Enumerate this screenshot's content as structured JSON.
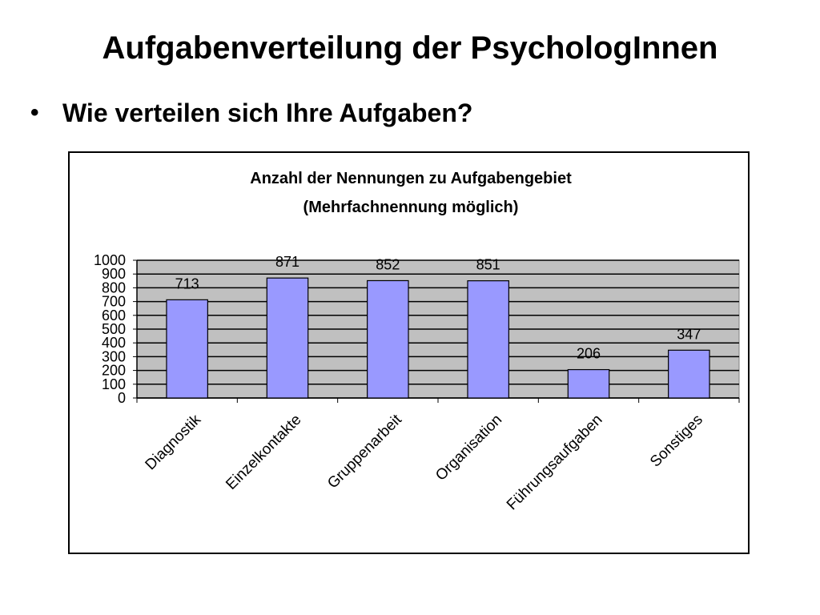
{
  "slide": {
    "title": "Aufgabenverteilung der PsychologInnen",
    "bullet_symbol": "•",
    "bullet": "Wie verteilen sich Ihre Aufgaben?"
  },
  "chart_data": {
    "type": "bar",
    "title": "Anzahl der Nennungen zu Aufgabengebiet",
    "subtitle": "(Mehrfachnennung möglich)",
    "categories": [
      "Diagnostik",
      "Einzelkontakte",
      "Gruppenarbeit",
      "Organisation",
      "Führungsaufgaben",
      "Sonstiges"
    ],
    "values": [
      713,
      871,
      852,
      851,
      206,
      347
    ],
    "value_labels": [
      "713",
      "871",
      "852",
      "851",
      "206",
      "347"
    ],
    "ylim": [
      0,
      1000
    ],
    "yticks": [
      0,
      100,
      200,
      300,
      400,
      500,
      600,
      700,
      800,
      900,
      1000
    ],
    "ytick_labels": [
      "0",
      "100",
      "200",
      "300",
      "400",
      "500",
      "600",
      "700",
      "800",
      "900",
      "1000"
    ],
    "xlabel": "",
    "ylabel": "",
    "grid": true,
    "legend": "none",
    "bar_color": "#9999ff",
    "plot_background": "#c0c0c0"
  }
}
